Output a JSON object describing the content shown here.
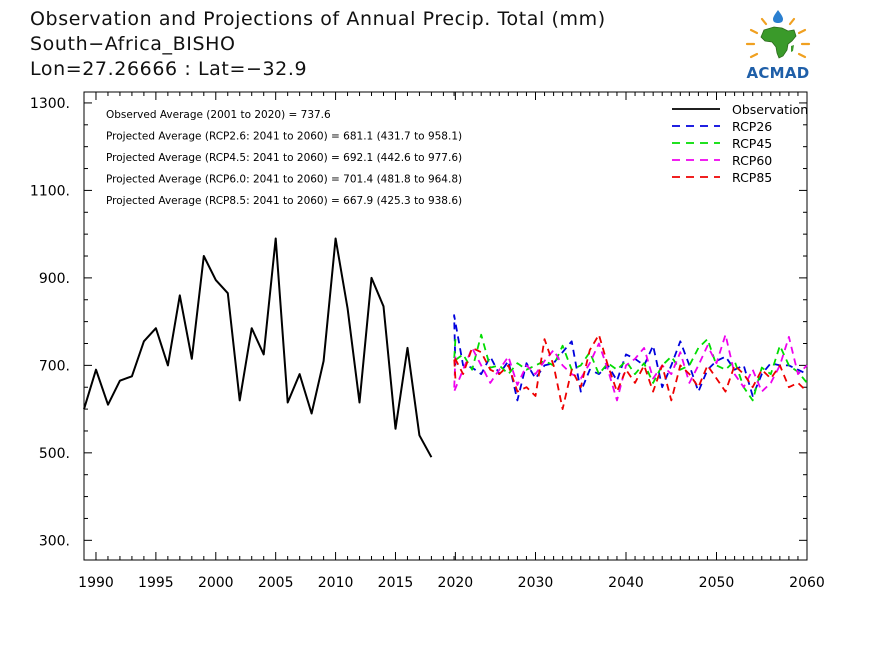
{
  "header": {
    "title": "Observation and Projections of Annual Precip. Total (mm)",
    "location": "South−Africa_BISHO",
    "coords": "Lon=27.26666 : Lat=−32.9"
  },
  "logo": {
    "text": "ACMAD",
    "icon": "africa-sun-logo"
  },
  "colors": {
    "Observation": "#000000",
    "RCP26": "#0000dd",
    "RCP45": "#00dd00",
    "RCP60": "#ee00ee",
    "RCP85": "#ee0000"
  },
  "chart_data": {
    "type": "line",
    "ylim": [
      255,
      1325
    ],
    "yticks": [
      300,
      500,
      700,
      900,
      1100,
      1300
    ],
    "ytick_labels": [
      "300.",
      "500.",
      "700.",
      "900.",
      "1100.",
      "1300."
    ],
    "xticks": [
      1990,
      1995,
      2000,
      2005,
      2010,
      2015,
      2020,
      2030,
      2040,
      2050,
      2060
    ],
    "xtick_labels": [
      "1990",
      "1995",
      "2000",
      "2005",
      "2010",
      "2015",
      "2020",
      "2030",
      "2040",
      "2050",
      "2060"
    ],
    "annotations": [
      "Observed Average (2001 to 2020) = 737.6",
      "Projected Average (RCP2.6: 2041 to 2060) = 681.1 (431.7 to 958.1)",
      "Projected Average (RCP4.5: 2041 to 2060) = 692.1 (442.6 to 977.6)",
      "Projected Average (RCP6.0: 2041 to 2060) = 701.4 (481.8 to 964.8)",
      "Projected Average (RCP8.5: 2041 to 2060) = 667.9 (425.3 to 938.6)"
    ],
    "legend": {
      "placement": "top-right",
      "entries": [
        "Observation",
        "RCP26",
        "RCP45",
        "RCP60",
        "RCP85"
      ]
    },
    "series": [
      {
        "name": "Observation",
        "style": "solid",
        "x": [
          1989,
          1990,
          1991,
          1992,
          1993,
          1994,
          1995,
          1996,
          1997,
          1998,
          1999,
          2000,
          2001,
          2002,
          2003,
          2004,
          2005,
          2006,
          2007,
          2008,
          2009,
          2010,
          2011,
          2012,
          2013,
          2014,
          2015,
          2016,
          2017,
          2018,
          2019
        ],
        "y": [
          600,
          690,
          610,
          665,
          675,
          755,
          785,
          700,
          860,
          715,
          950,
          895,
          865,
          620,
          785,
          725,
          990,
          615,
          680,
          590,
          710,
          990,
          830,
          615,
          900,
          835,
          555,
          740,
          540,
          490,
          null
        ]
      },
      {
        "name": "RCP26",
        "style": "dashed",
        "x": [
          2020,
          2021,
          2022,
          2023,
          2024,
          2025,
          2026,
          2027,
          2028,
          2029,
          2030,
          2031,
          2032,
          2033,
          2034,
          2035,
          2036,
          2037,
          2038,
          2039,
          2040,
          2041,
          2042,
          2043,
          2044,
          2045,
          2046,
          2047,
          2048,
          2049,
          2050,
          2051,
          2052,
          2053,
          2054,
          2055,
          2056,
          2057,
          2058,
          2059,
          2060
        ],
        "y": [
          700,
          815,
          700,
          695,
          680,
          720,
          680,
          710,
          620,
          705,
          670,
          700,
          705,
          730,
          755,
          640,
          690,
          680,
          700,
          665,
          725,
          715,
          700,
          745,
          650,
          700,
          755,
          700,
          640,
          690,
          710,
          720,
          690,
          700,
          630,
          680,
          705,
          700,
          700,
          690,
          680
        ]
      },
      {
        "name": "RCP45",
        "style": "dashed",
        "x": [
          2020,
          2021,
          2022,
          2023,
          2024,
          2025,
          2026,
          2027,
          2028,
          2029,
          2030,
          2031,
          2032,
          2033,
          2034,
          2035,
          2036,
          2037,
          2038,
          2039,
          2040,
          2041,
          2042,
          2043,
          2044,
          2045,
          2046,
          2047,
          2048,
          2049,
          2050,
          2051,
          2052,
          2053,
          2054,
          2055,
          2056,
          2057,
          2058,
          2059,
          2060
        ],
        "y": [
          760,
          710,
          725,
          690,
          770,
          695,
          700,
          680,
          705,
          690,
          700,
          710,
          700,
          745,
          690,
          700,
          730,
          680,
          705,
          690,
          710,
          680,
          705,
          660,
          700,
          720,
          690,
          700,
          740,
          760,
          700,
          690,
          710,
          650,
          620,
          695,
          680,
          745,
          700,
          685,
          660
        ]
      },
      {
        "name": "RCP60",
        "style": "dashed",
        "x": [
          2020,
          2021,
          2022,
          2023,
          2024,
          2025,
          2026,
          2027,
          2028,
          2029,
          2030,
          2031,
          2032,
          2033,
          2034,
          2035,
          2036,
          2037,
          2038,
          2039,
          2040,
          2041,
          2042,
          2043,
          2044,
          2045,
          2046,
          2047,
          2048,
          2049,
          2050,
          2051,
          2052,
          2053,
          2054,
          2055,
          2056,
          2057,
          2058,
          2059,
          2060
        ],
        "y": [
          720,
          640,
          690,
          740,
          700,
          660,
          690,
          720,
          655,
          700,
          680,
          710,
          735,
          700,
          680,
          670,
          705,
          750,
          690,
          620,
          700,
          715,
          740,
          670,
          700,
          680,
          730,
          660,
          700,
          745,
          705,
          770,
          680,
          650,
          690,
          640,
          660,
          700,
          765,
          680,
          700
        ]
      },
      {
        "name": "RCP85",
        "style": "dashed",
        "x": [
          2020,
          2021,
          2022,
          2023,
          2024,
          2025,
          2026,
          2027,
          2028,
          2029,
          2030,
          2031,
          2032,
          2033,
          2034,
          2035,
          2036,
          2037,
          2038,
          2039,
          2040,
          2041,
          2042,
          2043,
          2044,
          2045,
          2046,
          2047,
          2048,
          2049,
          2050,
          2051,
          2052,
          2053,
          2054,
          2055,
          2056,
          2057,
          2058,
          2059,
          2060
        ],
        "y": [
          670,
          720,
          680,
          740,
          730,
          690,
          680,
          700,
          640,
          650,
          630,
          760,
          700,
          600,
          690,
          650,
          735,
          770,
          700,
          640,
          690,
          660,
          700,
          640,
          700,
          620,
          700,
          680,
          650,
          700,
          670,
          640,
          700,
          680,
          650,
          690,
          670,
          700,
          650,
          660,
          640
        ]
      }
    ]
  }
}
